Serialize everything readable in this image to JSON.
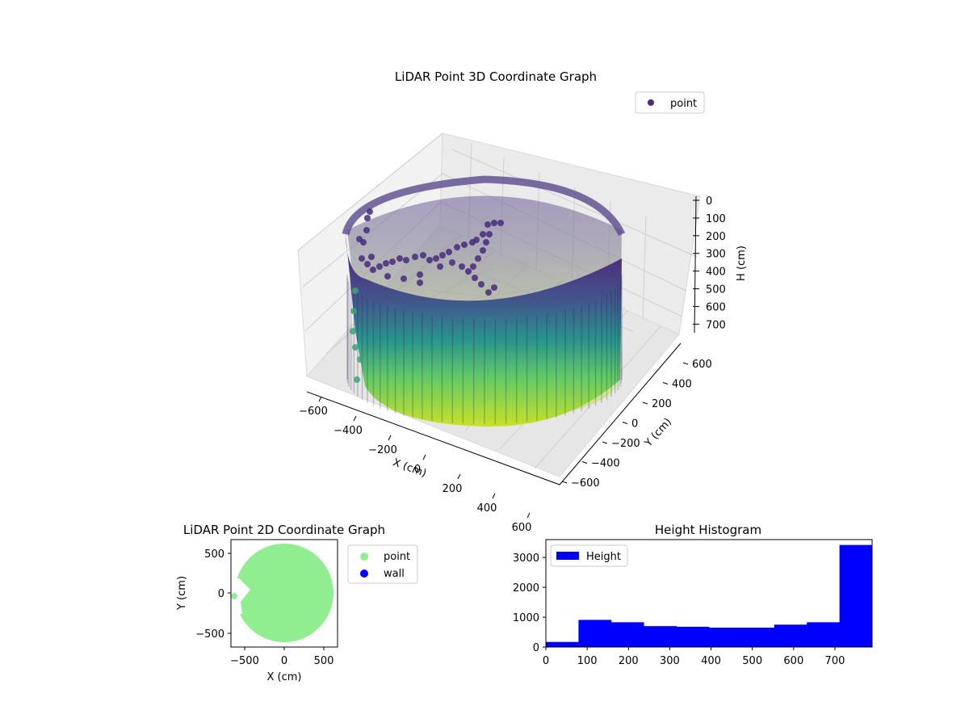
{
  "chart_data": [
    {
      "type": "scatter",
      "projection": "3d",
      "title": "LiDAR Point 3D Coordinate Graph",
      "xlabel": "X (cm)",
      "ylabel": "Y (cm)",
      "zlabel": "H (cm)",
      "xlim": [
        -650,
        650
      ],
      "ylim": [
        -650,
        650
      ],
      "zlim": [
        790,
        0
      ],
      "z_inverted": true,
      "xticks": [
        "−600",
        "−400",
        "−200",
        "0",
        "200",
        "400",
        "600"
      ],
      "yticks": [
        "−600",
        "−400",
        "−200",
        "0",
        "200",
        "400",
        "600"
      ],
      "zticks": [
        "0",
        "100",
        "200",
        "300",
        "400",
        "500",
        "600",
        "700"
      ],
      "grid": true,
      "colormap": "viridis",
      "legend": {
        "placement": "upper-right",
        "entries": [
          {
            "label": "point",
            "color": "#472c7a"
          }
        ]
      },
      "series": [
        {
          "name": "point",
          "shape": "cylinder",
          "radius_cm": 600,
          "height_cm": [
            0,
            790
          ],
          "color": "#472c7a"
        }
      ]
    },
    {
      "type": "scatter",
      "title": "LiDAR Point 2D Coordinate Graph",
      "xlabel": "X (cm)",
      "ylabel": "Y (cm)",
      "xlim": [
        -650,
        650
      ],
      "ylim": [
        -650,
        650
      ],
      "xticks": [
        "−500",
        "0",
        "500"
      ],
      "yticks": [
        "500",
        "0",
        "−500"
      ],
      "legend": {
        "placement": "outside-right",
        "entries": [
          {
            "label": "point",
            "color": "#90ee90"
          },
          {
            "label": "wall",
            "color": "#0000ff"
          }
        ]
      },
      "series": [
        {
          "name": "point",
          "shape": "disc",
          "radius_cm": 600,
          "color": "#90ee90"
        },
        {
          "name": "wall",
          "color": "#0000ff"
        }
      ]
    },
    {
      "type": "bar",
      "title": "Height Histogram",
      "xlim": [
        0,
        790
      ],
      "ylim": [
        0,
        3600
      ],
      "xticks": [
        "0",
        "100",
        "200",
        "300",
        "400",
        "500",
        "600",
        "700"
      ],
      "yticks": [
        "0",
        "1000",
        "2000",
        "3000"
      ],
      "legend": {
        "placement": "upper-left",
        "entries": [
          {
            "label": "Height",
            "color": "#0000ff"
          }
        ]
      },
      "series": [
        {
          "name": "Height",
          "color": "#0000ff",
          "bin_edges": [
            0,
            79,
            158,
            237,
            316,
            395,
            474,
            553,
            632,
            711,
            790
          ],
          "values": [
            170,
            910,
            830,
            700,
            680,
            650,
            650,
            750,
            830,
            3420
          ]
        }
      ]
    }
  ]
}
